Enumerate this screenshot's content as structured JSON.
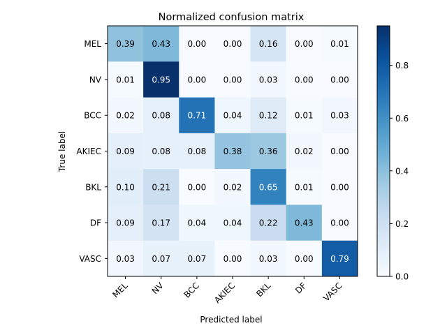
{
  "chart_data": {
    "type": "heatmap",
    "title": "Normalized confusion matrix",
    "xlabel": "Predicted label",
    "ylabel": "True label",
    "x_categories": [
      "MEL",
      "NV",
      "BCC",
      "AKIEC",
      "BKL",
      "DF",
      "VASC"
    ],
    "y_categories": [
      "MEL",
      "NV",
      "BCC",
      "AKIEC",
      "BKL",
      "DF",
      "VASC"
    ],
    "values": [
      [
        0.39,
        0.43,
        0.0,
        0.0,
        0.16,
        0.0,
        0.01
      ],
      [
        0.01,
        0.95,
        0.0,
        0.0,
        0.03,
        0.0,
        0.0
      ],
      [
        0.02,
        0.08,
        0.71,
        0.04,
        0.12,
        0.01,
        0.03
      ],
      [
        0.09,
        0.08,
        0.08,
        0.38,
        0.36,
        0.02,
        0.0
      ],
      [
        0.1,
        0.21,
        0.0,
        0.02,
        0.65,
        0.01,
        0.0
      ],
      [
        0.09,
        0.17,
        0.04,
        0.04,
        0.22,
        0.43,
        0.0
      ],
      [
        0.03,
        0.07,
        0.07,
        0.0,
        0.03,
        0.0,
        0.79
      ]
    ],
    "colormap": "Blues",
    "vmin": 0.0,
    "vmax": 0.95,
    "colorbar_ticks": [
      0.0,
      0.2,
      0.4,
      0.6,
      0.8
    ],
    "colorbar_tick_labels": [
      "0.0",
      "0.2",
      "0.4",
      "0.6",
      "0.8"
    ],
    "text_color_light": "#ffffff",
    "text_color_dark": "#000000"
  }
}
